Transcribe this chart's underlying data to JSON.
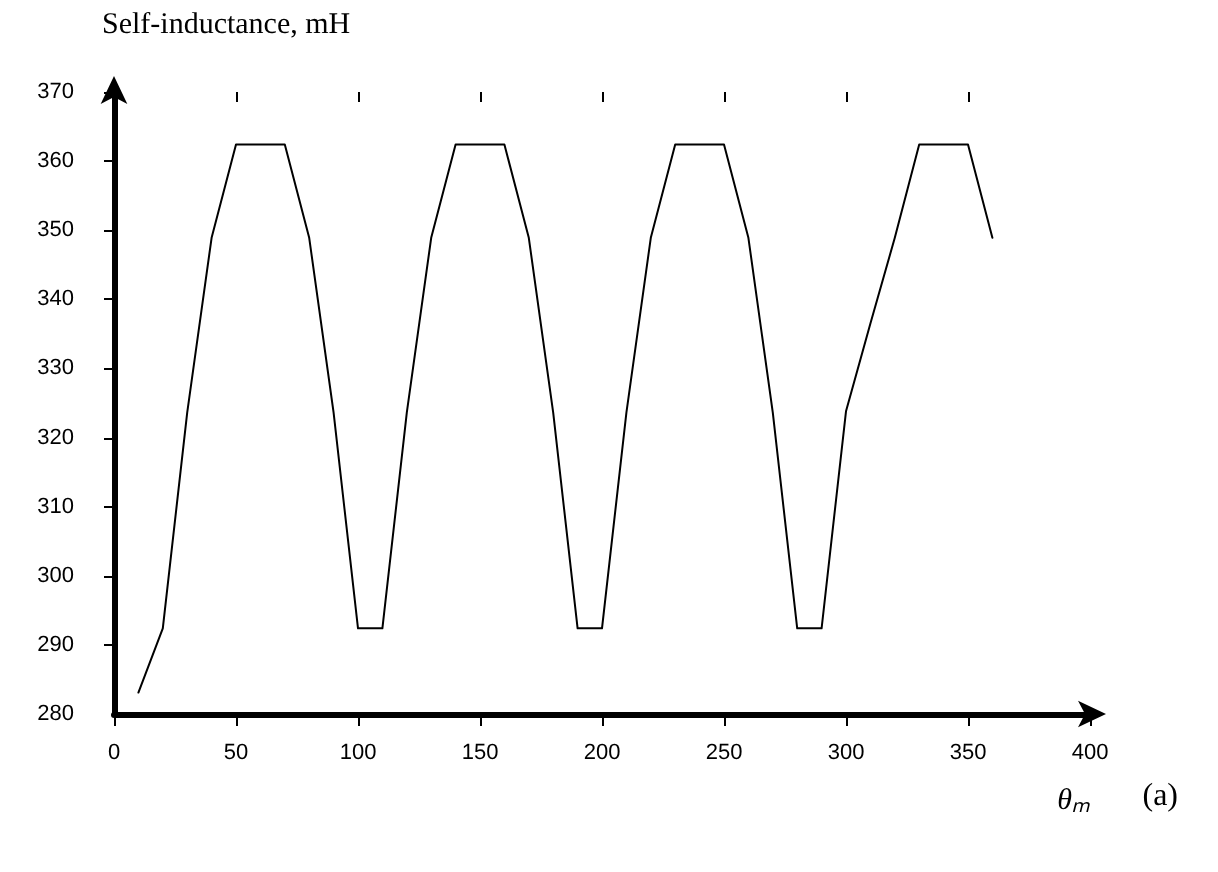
{
  "chart_data": {
    "type": "line",
    "ylabel": "Self-inductance, mH",
    "xlabel": "θₘ",
    "annotations": [
      "(a)"
    ],
    "x": [
      10,
      20,
      30,
      40,
      50,
      60,
      70,
      80,
      90,
      100,
      110,
      120,
      130,
      140,
      150,
      160,
      170,
      180,
      190,
      200,
      210,
      220,
      230,
      240,
      250,
      260,
      270,
      280,
      290,
      300,
      310,
      320,
      330,
      340,
      350,
      360
    ],
    "series": [
      {
        "color": "#000000",
        "values": [
          283.1,
          292.4,
          323.6,
          348.9,
          362.4,
          362.4,
          362.4,
          348.9,
          323.6,
          292.4,
          292.4,
          323.6,
          348.9,
          362.4,
          362.4,
          362.4,
          348.9,
          323.6,
          292.4,
          292.4,
          323.6,
          348.9,
          362.4,
          362.4,
          362.4,
          348.9,
          323.6,
          292.4,
          292.4,
          323.8,
          336.5,
          348.9,
          362.4,
          362.4,
          362.4,
          348.9
        ]
      }
    ],
    "xlim": [
      0,
      400
    ],
    "xticks": [
      0,
      50,
      100,
      150,
      200,
      250,
      300,
      350,
      400
    ],
    "ylim": [
      280,
      370
    ],
    "yticks": [
      280,
      290,
      300,
      310,
      320,
      330,
      340,
      350,
      360,
      370
    ],
    "grid": false,
    "marker": "none",
    "line_style": "solid"
  }
}
